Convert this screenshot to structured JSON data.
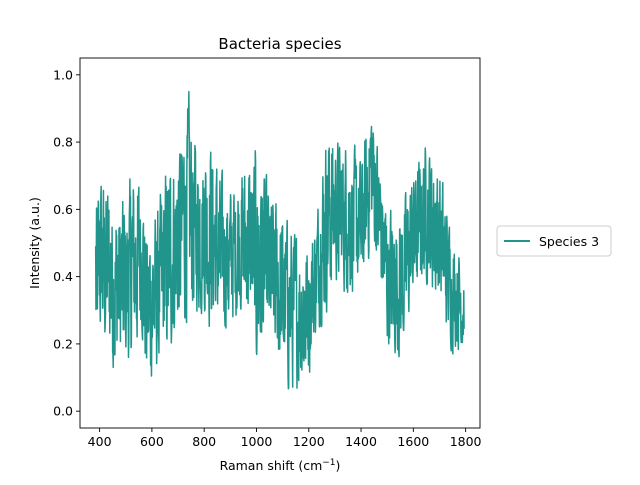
{
  "chart_data": {
    "type": "line",
    "title": "Bacteria species",
    "xlabel": "Raman shift (cm",
    "xlabel_sup": "−1",
    "xlabel_suffix": ")",
    "ylabel": "Intensity (a.u.)",
    "xlim": [
      325,
      1855
    ],
    "ylim": [
      -0.05,
      1.05
    ],
    "x_ticks": [
      400,
      600,
      800,
      1000,
      1200,
      1400,
      1600,
      1800
    ],
    "y_ticks": [
      0.0,
      0.2,
      0.4,
      0.6,
      0.8,
      1.0
    ],
    "x_tick_labels": [
      "400",
      "600",
      "800",
      "1000",
      "1200",
      "1400",
      "1600",
      "1800"
    ],
    "y_tick_labels": [
      "0.0",
      "0.2",
      "0.4",
      "0.6",
      "0.8",
      "1.0"
    ],
    "grid": false,
    "legend_position": "center-right outside",
    "series": [
      {
        "name": "Species 3",
        "color": "#21958b",
        "x_start": 385,
        "x_end": 1795,
        "envelope": [
          [
            385,
            0.05,
            0.68
          ],
          [
            400,
            0.15,
            0.75
          ],
          [
            430,
            0.1,
            0.76
          ],
          [
            460,
            0.03,
            0.68
          ],
          [
            500,
            0.05,
            0.7
          ],
          [
            540,
            0.12,
            0.78
          ],
          [
            560,
            0.2,
            0.75
          ],
          [
            580,
            0.0,
            0.6
          ],
          [
            620,
            0.05,
            0.65
          ],
          [
            660,
            0.1,
            0.8
          ],
          [
            700,
            0.18,
            0.85
          ],
          [
            740,
            0.2,
            1.0
          ],
          [
            780,
            0.25,
            0.8
          ],
          [
            820,
            0.2,
            0.9
          ],
          [
            860,
            0.18,
            0.75
          ],
          [
            900,
            0.2,
            0.7
          ],
          [
            940,
            0.25,
            0.78
          ],
          [
            980,
            0.18,
            0.8
          ],
          [
            1000,
            0.05,
            0.87
          ],
          [
            1050,
            0.15,
            0.7
          ],
          [
            1100,
            0.03,
            0.65
          ],
          [
            1150,
            0.0,
            0.58
          ],
          [
            1200,
            0.05,
            0.55
          ],
          [
            1230,
            0.2,
            0.62
          ],
          [
            1270,
            0.25,
            0.93
          ],
          [
            1300,
            0.35,
            0.85
          ],
          [
            1350,
            0.3,
            0.85
          ],
          [
            1400,
            0.3,
            0.78
          ],
          [
            1440,
            0.45,
            1.0
          ],
          [
            1470,
            0.35,
            0.8
          ],
          [
            1500,
            0.15,
            0.65
          ],
          [
            1550,
            0.1,
            0.65
          ],
          [
            1600,
            0.3,
            0.75
          ],
          [
            1650,
            0.35,
            0.85
          ],
          [
            1700,
            0.25,
            0.78
          ],
          [
            1750,
            0.15,
            0.55
          ],
          [
            1795,
            0.15,
            0.5
          ]
        ]
      }
    ]
  }
}
